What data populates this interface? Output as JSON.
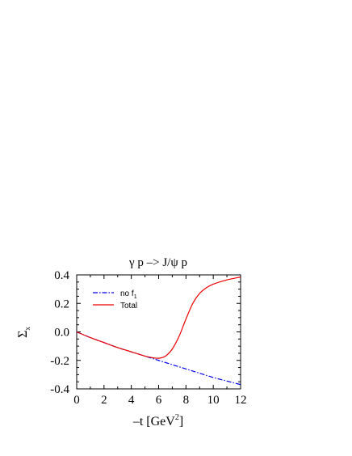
{
  "chart_data": {
    "type": "line",
    "title": "γ p –> J/ψ p",
    "xlabel": "–t [GeV²]",
    "xlabel_main": "–t [GeV",
    "xlabel_sup": "2",
    "xlabel_end": "]",
    "ylabel": "Σx",
    "ylabel_main": "Σ",
    "ylabel_sub": "x",
    "xlim": [
      0,
      12
    ],
    "ylim": [
      -0.4,
      0.4
    ],
    "xticks": [
      "0",
      "2",
      "4",
      "6",
      "8",
      "10",
      "12"
    ],
    "yticks": [
      "-0.4",
      "-0.2",
      "0.0",
      "0.2",
      "0.4"
    ],
    "grid": false,
    "legend_position": "top-left",
    "series": [
      {
        "name": "no f₁",
        "name_main": "no f",
        "name_sub": "1",
        "color": "#0000ee",
        "style": "dash-dot",
        "x": [
          0,
          1,
          2,
          3,
          4,
          5,
          6,
          7,
          8,
          9,
          10,
          11,
          12
        ],
        "y": [
          0.0,
          -0.04,
          -0.075,
          -0.11,
          -0.14,
          -0.17,
          -0.2,
          -0.23,
          -0.26,
          -0.29,
          -0.32,
          -0.345,
          -0.37
        ]
      },
      {
        "name": "Total",
        "color": "#ee0000",
        "style": "solid",
        "x": [
          0,
          1,
          2,
          3,
          4,
          5,
          5.5,
          6,
          6.5,
          7,
          7.5,
          8,
          8.5,
          9,
          9.5,
          10,
          11,
          12
        ],
        "y": [
          0.0,
          -0.04,
          -0.075,
          -0.11,
          -0.14,
          -0.17,
          -0.18,
          -0.185,
          -0.17,
          -0.12,
          -0.03,
          0.09,
          0.2,
          0.27,
          0.31,
          0.335,
          0.365,
          0.385
        ]
      }
    ]
  }
}
